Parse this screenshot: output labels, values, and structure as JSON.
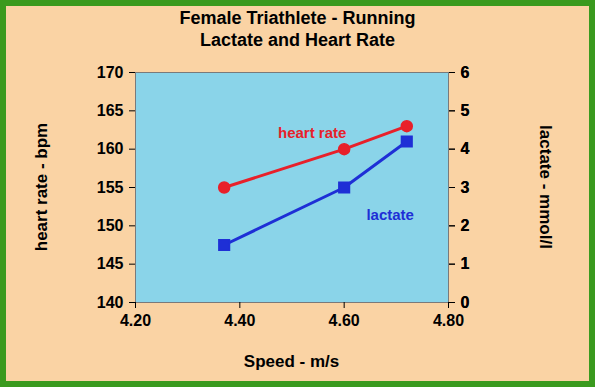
{
  "chart_data": {
    "type": "line",
    "title": "Female Triathlete - Running\nLactate and Heart Rate",
    "x_label": "Speed - m/s",
    "y_label": "heart rate - bpm",
    "y2_label": "lactate - mmol/l",
    "x": [
      4.37,
      4.6,
      4.72
    ],
    "series": [
      {
        "name": "heart rate",
        "color": "#E8202A",
        "marker": "circle",
        "values": [
          155,
          160,
          163
        ]
      },
      {
        "name": "lactate",
        "color": "#1E2FD6",
        "marker": "square",
        "axis": "y2",
        "values": [
          1.5,
          3.0,
          4.2
        ]
      }
    ],
    "xlim": [
      4.2,
      4.8
    ],
    "xticks": [
      {
        "value": 4.2,
        "label": "4.20"
      },
      {
        "value": 4.4,
        "label": "4.40"
      },
      {
        "value": 4.6,
        "label": "4.60"
      },
      {
        "value": 4.8,
        "label": "4.80"
      }
    ],
    "ylim": [
      140,
      170
    ],
    "yticks": [
      140,
      145,
      150,
      155,
      160,
      165,
      170
    ],
    "y2lim": [
      0,
      6
    ],
    "y2ticks": [
      0,
      1,
      2,
      3,
      4,
      5,
      6
    ],
    "grid": false
  }
}
